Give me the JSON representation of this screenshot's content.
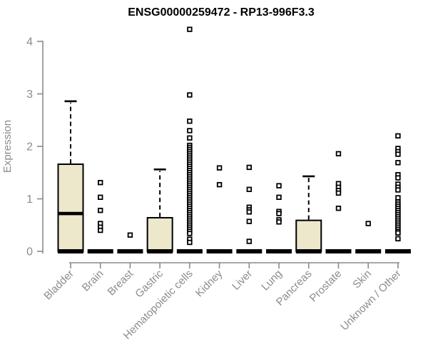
{
  "title": "ENSG00000259472 - RP13-996F3.3",
  "chart_data": {
    "type": "boxplot",
    "title": "ENSG00000259472 - RP13-996F3.3",
    "xlabel": "",
    "ylabel": "Expression",
    "ylim": [
      0,
      4.3
    ],
    "yticks": [
      0,
      1,
      2,
      3,
      4
    ],
    "grid": false,
    "legend": "none",
    "categories": [
      "Bladder",
      "Brain",
      "Breast",
      "Gastric",
      "Hematopoietic cells",
      "Kidney",
      "Liver",
      "Lung",
      "Pancreas",
      "Prostate",
      "Skin",
      "Unknown / Other"
    ],
    "series": [
      {
        "name": "Bladder",
        "q1": 0,
        "median": 0.72,
        "q3": 1.66,
        "whisker_low": 0,
        "whisker_high": 2.86,
        "outliers": []
      },
      {
        "name": "Brain",
        "q1": 0,
        "median": 0,
        "q3": 0,
        "whisker_low": 0,
        "whisker_high": 0,
        "outliers": [
          1.31,
          1.03,
          0.78,
          0.53,
          0.46,
          0.4
        ]
      },
      {
        "name": "Breast",
        "q1": 0,
        "median": 0,
        "q3": 0,
        "whisker_low": 0,
        "whisker_high": 0,
        "outliers": [
          0.31
        ]
      },
      {
        "name": "Gastric",
        "q1": 0,
        "median": 0,
        "q3": 0.64,
        "whisker_low": 0,
        "whisker_high": 1.56,
        "outliers": []
      },
      {
        "name": "Hematopoietic cells",
        "q1": 0,
        "median": 0,
        "q3": 0,
        "whisker_low": 0,
        "whisker_high": 0,
        "outliers": [
          4.23,
          2.98,
          2.48,
          2.3,
          2.16,
          2.02,
          1.98,
          1.94,
          1.9,
          1.86,
          1.82,
          1.78,
          1.74,
          1.7,
          1.66,
          1.62,
          1.58,
          1.54,
          1.5,
          1.46,
          1.42,
          1.38,
          1.34,
          1.3,
          1.26,
          1.22,
          1.18,
          1.14,
          1.1,
          1.06,
          1.02,
          0.98,
          0.94,
          0.9,
          0.86,
          0.82,
          0.78,
          0.74,
          0.7,
          0.66,
          0.62,
          0.58,
          0.54,
          0.5,
          0.46,
          0.42,
          0.38,
          0.34,
          0.23,
          0.17
        ]
      },
      {
        "name": "Kidney",
        "q1": 0,
        "median": 0,
        "q3": 0,
        "whisker_low": 0,
        "whisker_high": 0,
        "outliers": [
          1.59,
          1.27
        ]
      },
      {
        "name": "Liver",
        "q1": 0,
        "median": 0,
        "q3": 0,
        "whisker_low": 0,
        "whisker_high": 0,
        "outliers": [
          1.6,
          1.18,
          0.84,
          0.79,
          0.75,
          0.57,
          0.19
        ]
      },
      {
        "name": "Lung",
        "q1": 0,
        "median": 0,
        "q3": 0,
        "whisker_low": 0,
        "whisker_high": 0,
        "outliers": [
          1.25,
          1.03,
          0.76,
          0.72,
          0.6,
          0.56
        ]
      },
      {
        "name": "Pancreas",
        "q1": 0,
        "median": 0,
        "q3": 0.59,
        "whisker_low": 0,
        "whisker_high": 1.43,
        "outliers": []
      },
      {
        "name": "Prostate",
        "q1": 0,
        "median": 0,
        "q3": 0,
        "whisker_low": 0,
        "whisker_high": 0,
        "outliers": [
          1.86,
          1.29,
          1.22,
          1.16,
          1.11,
          0.82
        ]
      },
      {
        "name": "Skin",
        "q1": 0,
        "median": 0,
        "q3": 0,
        "whisker_low": 0,
        "whisker_high": 0,
        "outliers": [
          0.53
        ]
      },
      {
        "name": "Unknown / Other",
        "q1": 0,
        "median": 0,
        "q3": 0,
        "whisker_low": 0,
        "whisker_high": 0,
        "outliers": [
          2.2,
          1.96,
          1.9,
          1.85,
          1.69,
          1.46,
          1.4,
          1.28,
          1.22,
          1.17,
          1.02,
          0.94,
          0.9,
          0.86,
          0.82,
          0.78,
          0.74,
          0.7,
          0.66,
          0.62,
          0.58,
          0.54,
          0.5,
          0.46,
          0.42,
          0.38,
          0.35,
          0.24
        ]
      }
    ],
    "colors": {
      "box_fill": "#EDE7CC",
      "box_stroke": "#000000",
      "median": "#000000",
      "outlier_fill": "#ffffff",
      "axis": "#8a8a8a",
      "tick_label": "#8c8c8c",
      "title": "#000000",
      "background": "#ffffff"
    }
  }
}
